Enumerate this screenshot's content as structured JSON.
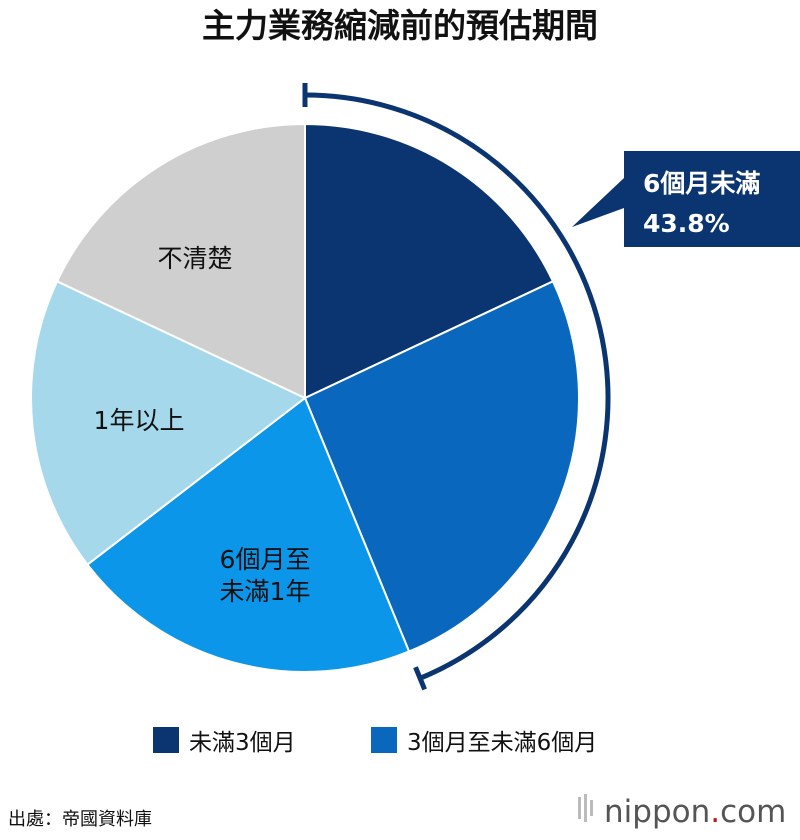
{
  "chart_data": {
    "type": "pie",
    "title": "主力業務縮減前的預估期間",
    "slices": [
      {
        "label": "未滿3個月",
        "value": 18.0,
        "color": "#0a3570",
        "show_label": false
      },
      {
        "label": "3個月至未滿6個月",
        "value": 25.8,
        "color": "#0a67be",
        "show_label": false
      },
      {
        "label": [
          "6個月至",
          "未滿1年"
        ],
        "value": 20.8,
        "color": "#0b96ea",
        "show_label": true
      },
      {
        "label": "1年以上",
        "value": 17.4,
        "color": "#a6d8ec",
        "show_label": true
      },
      {
        "label": "不清楚",
        "value": 18.0,
        "color": "#cfcfcf",
        "show_label": true
      }
    ],
    "callout": {
      "line1": "6個月未滿",
      "line2": "43.8%",
      "color": "#0a3570"
    },
    "legend": [
      {
        "label": "未滿3個月",
        "color": "#0a3570"
      },
      {
        "label": "3個月至未滿6個月",
        "color": "#0a67be"
      }
    ],
    "source": "出處：帝國資料庫",
    "brand": {
      "name": "nippon",
      "dot": ".",
      "tld": "com"
    }
  }
}
